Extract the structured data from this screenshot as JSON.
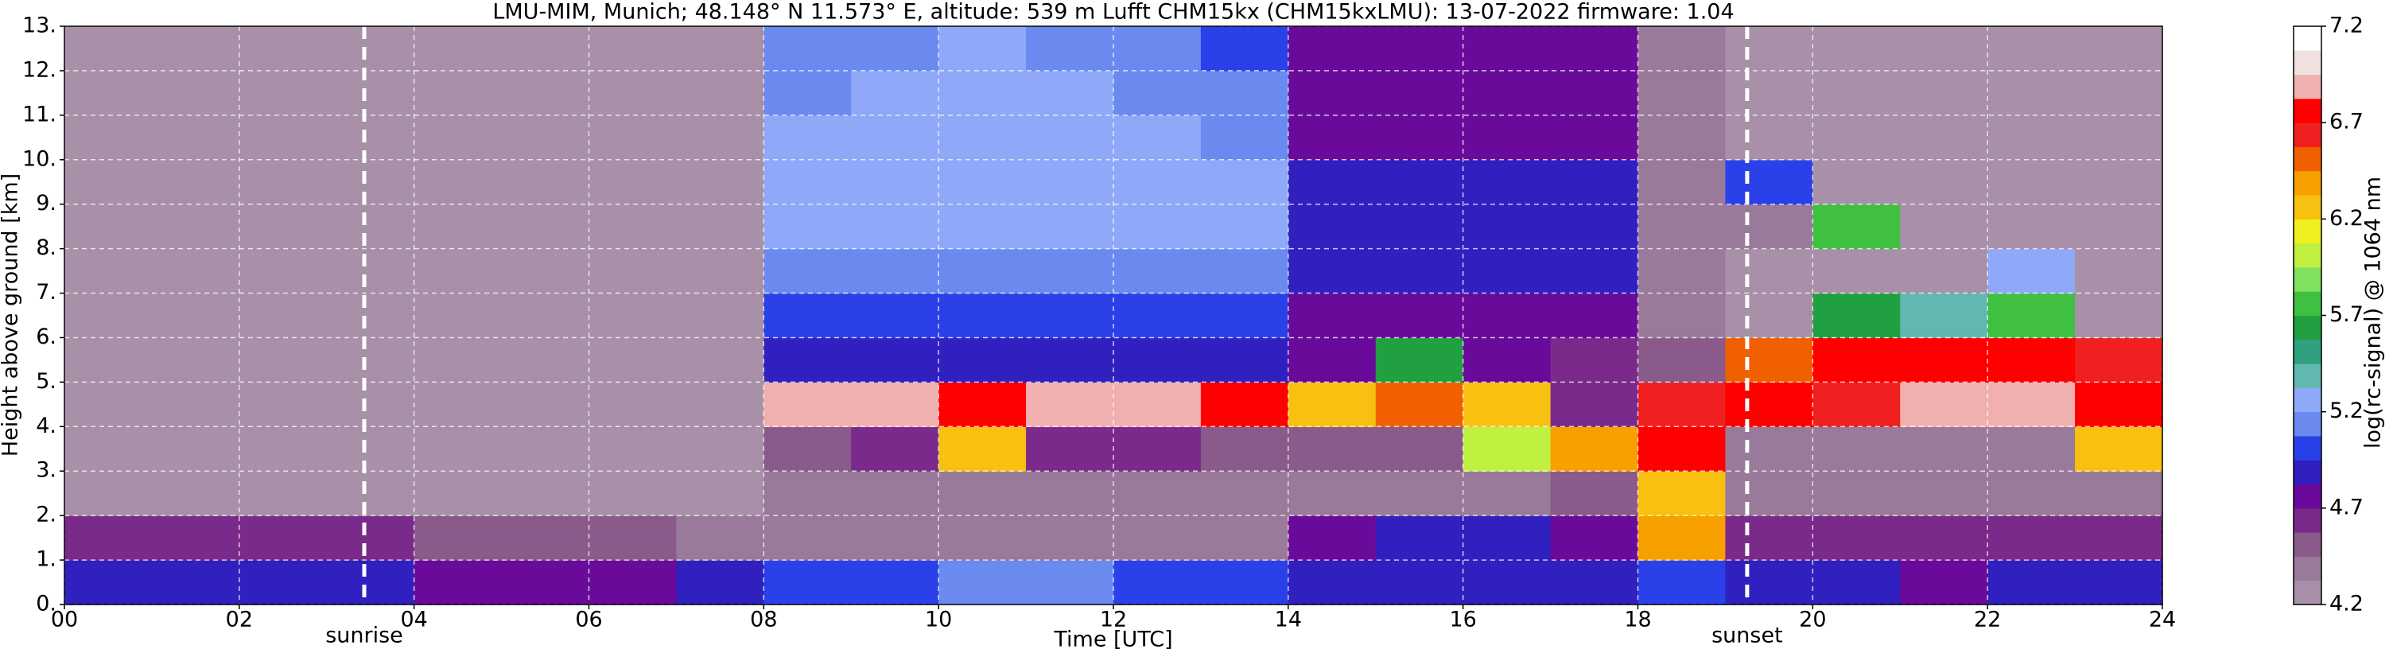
{
  "chart_data": {
    "type": "heatmap",
    "title": "LMU-MIM, Munich; 48.148° N 11.573° E, altitude: 539 m    Lufft CHM15kx (CHM15kxLMU): 13-07-2022    firmware: 1.04",
    "x_label": "Time [UTC]",
    "y_label": "Height above ground [km]",
    "colorbar_label": "log(rc-signal) @ 1064 nm",
    "xlim": [
      0,
      24
    ],
    "xticks": [
      {
        "value": 0,
        "label": "00"
      },
      {
        "value": 2,
        "label": "02"
      },
      {
        "value": 4,
        "label": "04"
      },
      {
        "value": 6,
        "label": "06"
      },
      {
        "value": 8,
        "label": "08"
      },
      10,
      12,
      14,
      16,
      18,
      20,
      22,
      24
    ],
    "ylim": [
      0,
      13
    ],
    "yticks": [
      {
        "value": 0,
        "label": "0."
      },
      {
        "value": 1,
        "label": "1."
      },
      {
        "value": 2,
        "label": "2."
      },
      {
        "value": 3,
        "label": "3."
      },
      {
        "value": 4,
        "label": "4."
      },
      {
        "value": 5,
        "label": "5."
      },
      {
        "value": 6,
        "label": "6."
      },
      {
        "value": 7,
        "label": "7."
      },
      {
        "value": 8,
        "label": "8."
      },
      {
        "value": 9,
        "label": "9."
      },
      {
        "value": 10,
        "label": "10."
      },
      {
        "value": 11,
        "label": "11."
      },
      {
        "value": 12,
        "label": "12."
      },
      {
        "value": 13,
        "label": "13."
      }
    ],
    "zlim": [
      4.2,
      7.2
    ],
    "zticks": [
      4.2,
      4.7,
      5.2,
      5.7,
      6.2,
      6.7,
      7.2
    ],
    "grid": true,
    "colors": [
      "#a890a8",
      "#9a7a9a",
      "#8a5a8a",
      "#7a2a8a",
      "#6a0a9a",
      "#3020c0",
      "#2a40e8",
      "#6a8af0",
      "#90a8f8",
      "#60b8b0",
      "#30a080",
      "#20a040",
      "#40c040",
      "#80e060",
      "#c0f040",
      "#f0f020",
      "#f8c010",
      "#f8a000",
      "#f06000",
      "#f02020",
      "#ff0000",
      "#f0b0b0",
      "#f0e0e0",
      "#ffffff"
    ],
    "annotations": [
      {
        "x": 3.43,
        "text": "sunrise"
      },
      {
        "x": 19.25,
        "text": "sunset"
      }
    ],
    "z": [
      [
        4.9,
        4.9,
        4.9,
        4.9,
        4.8,
        4.8,
        4.8,
        4.9,
        5.0,
        5.0,
        5.1,
        5.1,
        5.0,
        5.0,
        4.9,
        4.9,
        4.9,
        4.9,
        5.0,
        4.9,
        4.9,
        4.8,
        4.9,
        4.9
      ],
      [
        4.6,
        4.6,
        4.6,
        4.6,
        4.5,
        4.5,
        4.5,
        4.4,
        4.4,
        4.4,
        4.4,
        4.4,
        4.4,
        4.4,
        4.8,
        4.9,
        4.9,
        4.8,
        6.4,
        4.6,
        4.6,
        4.6,
        4.6,
        4.6
      ],
      [
        4.3,
        4.3,
        4.3,
        4.3,
        4.3,
        4.3,
        4.3,
        4.3,
        4.4,
        4.4,
        4.4,
        4.4,
        4.4,
        4.4,
        4.4,
        4.4,
        4.4,
        4.5,
        6.2,
        4.4,
        4.4,
        4.4,
        4.4,
        4.4
      ],
      [
        4.3,
        4.3,
        4.3,
        4.3,
        4.3,
        4.3,
        4.3,
        4.3,
        4.5,
        4.6,
        6.3,
        4.6,
        4.6,
        4.5,
        4.5,
        4.5,
        6.0,
        6.4,
        6.7,
        4.4,
        4.4,
        4.4,
        4.4,
        6.3
      ],
      [
        4.3,
        4.3,
        4.3,
        4.3,
        4.3,
        4.3,
        4.3,
        4.3,
        6.9,
        6.9,
        6.8,
        6.9,
        6.9,
        6.8,
        6.3,
        6.5,
        6.2,
        4.6,
        6.6,
        6.8,
        6.6,
        6.9,
        6.9,
        6.8
      ],
      [
        4.3,
        4.3,
        4.3,
        4.3,
        4.3,
        4.3,
        4.3,
        4.3,
        4.9,
        4.9,
        4.9,
        4.9,
        4.9,
        4.9,
        4.7,
        5.6,
        4.7,
        4.6,
        4.5,
        6.5,
        6.8,
        6.7,
        6.8,
        6.6
      ],
      [
        4.3,
        4.3,
        4.3,
        4.3,
        4.3,
        4.3,
        4.3,
        4.3,
        5.0,
        5.0,
        5.0,
        5.0,
        5.0,
        5.0,
        4.8,
        4.8,
        4.8,
        4.8,
        4.4,
        4.3,
        5.6,
        5.4,
        5.8,
        4.3
      ],
      [
        4.3,
        4.3,
        4.3,
        4.3,
        4.3,
        4.3,
        4.3,
        4.3,
        5.1,
        5.1,
        5.1,
        5.1,
        5.1,
        5.1,
        4.9,
        4.9,
        4.9,
        4.9,
        4.4,
        4.3,
        4.3,
        4.3,
        5.3,
        4.3
      ],
      [
        4.3,
        4.3,
        4.3,
        4.3,
        4.3,
        4.3,
        4.3,
        4.3,
        5.2,
        5.2,
        5.2,
        5.2,
        5.2,
        5.2,
        4.9,
        4.9,
        4.9,
        4.9,
        4.4,
        4.4,
        5.8,
        4.3,
        4.3,
        4.3
      ],
      [
        4.3,
        4.3,
        4.3,
        4.3,
        4.3,
        4.3,
        4.3,
        4.3,
        5.2,
        5.2,
        5.2,
        5.2,
        5.2,
        5.2,
        4.9,
        4.9,
        4.9,
        4.9,
        4.4,
        5.0,
        4.3,
        4.3,
        4.3,
        4.3
      ],
      [
        4.3,
        4.3,
        4.3,
        4.3,
        4.3,
        4.3,
        4.3,
        4.3,
        5.2,
        5.2,
        5.2,
        5.2,
        5.2,
        5.1,
        4.8,
        4.8,
        4.8,
        4.8,
        4.4,
        4.3,
        4.3,
        4.3,
        4.3,
        4.3
      ],
      [
        4.3,
        4.3,
        4.3,
        4.3,
        4.3,
        4.3,
        4.3,
        4.3,
        5.1,
        5.2,
        5.2,
        5.2,
        5.1,
        5.1,
        4.8,
        4.8,
        4.8,
        4.8,
        4.4,
        4.3,
        4.3,
        4.3,
        4.3,
        4.3
      ],
      [
        4.3,
        4.3,
        4.3,
        4.3,
        4.3,
        4.3,
        4.3,
        4.3,
        5.1,
        5.1,
        5.2,
        5.1,
        5.1,
        5.0,
        4.8,
        4.8,
        4.8,
        4.8,
        4.4,
        4.3,
        4.3,
        4.3,
        4.3,
        4.3
      ]
    ]
  }
}
